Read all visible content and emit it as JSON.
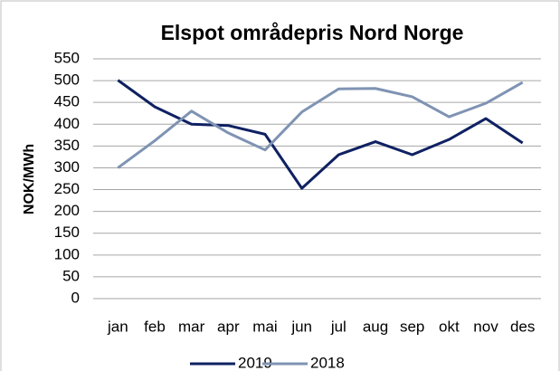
{
  "chart_data": {
    "type": "line",
    "title": "Elspot områdepris Nord Norge",
    "y_label": "NOK/MWh",
    "categories": [
      "jan",
      "feb",
      "mar",
      "apr",
      "mai",
      "jun",
      "jul",
      "aug",
      "sep",
      "okt",
      "nov",
      "des"
    ],
    "series": [
      {
        "name": "2019",
        "color": "#0f2162",
        "values": [
          501,
          440,
          400,
          397,
          377,
          253,
          330,
          360,
          330,
          365,
          413,
          357
        ]
      },
      {
        "name": "2018",
        "color": "#7f93b3",
        "values": [
          300,
          362,
          430,
          380,
          341,
          428,
          481,
          482,
          463,
          417,
          448,
          496
        ]
      }
    ],
    "ylim": [
      0,
      550
    ],
    "yticks": [
      0,
      50,
      100,
      150,
      200,
      250,
      300,
      350,
      400,
      450,
      500,
      550
    ],
    "grid": true,
    "legend": "bottom"
  }
}
